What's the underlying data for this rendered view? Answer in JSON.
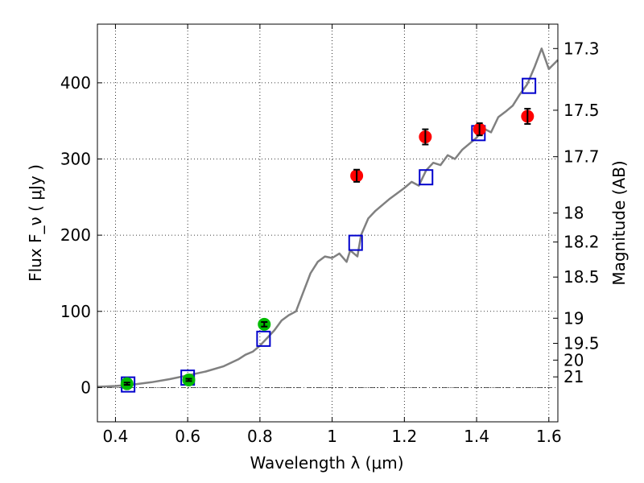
{
  "chart_data": {
    "type": "scatter",
    "xlabel": "Wavelength  λ (μm)",
    "ylabel": "Flux  F_ν  ( μJy )",
    "ylabel_right": "Magnitude (AB)",
    "xlim": [
      0.35,
      1.625
    ],
    "ylim": [
      -45,
      477
    ],
    "grid": true,
    "x_ticks": [
      0.4,
      0.6,
      0.8,
      1.0,
      1.2,
      1.4,
      1.6
    ],
    "x_tick_labels": [
      "0.4",
      "0.6",
      "0.8",
      "1",
      "1.2",
      "1.4",
      "1.6"
    ],
    "y_ticks": [
      0,
      100,
      200,
      300,
      400
    ],
    "y_tick_labels": [
      "0",
      "100",
      "200",
      "300",
      "400"
    ],
    "right_axis_ticks": [
      {
        "label": "17.3",
        "flux": 445
      },
      {
        "label": "17.5",
        "flux": 364
      },
      {
        "label": "17.7",
        "flux": 303
      },
      {
        "label": "18",
        "flux": 229
      },
      {
        "label": "18.2",
        "flux": 191
      },
      {
        "label": "18.5",
        "flux": 145
      },
      {
        "label": "19",
        "flux": 91
      },
      {
        "label": "19.5",
        "flux": 58
      },
      {
        "label": "20",
        "flux": 36
      },
      {
        "label": "21",
        "flux": 14
      }
    ],
    "series": [
      {
        "marker": "line",
        "color": "#808080",
        "x": [
          0.35,
          0.4,
          0.45,
          0.5,
          0.55,
          0.6,
          0.65,
          0.7,
          0.74,
          0.76,
          0.78,
          0.8,
          0.82,
          0.84,
          0.86,
          0.88,
          0.9,
          0.92,
          0.94,
          0.96,
          0.98,
          1.0,
          1.02,
          1.04,
          1.05,
          1.07,
          1.08,
          1.1,
          1.12,
          1.14,
          1.16,
          1.18,
          1.2,
          1.22,
          1.24,
          1.26,
          1.28,
          1.3,
          1.32,
          1.34,
          1.36,
          1.38,
          1.4,
          1.42,
          1.44,
          1.46,
          1.48,
          1.5,
          1.52,
          1.54,
          1.56,
          1.58,
          1.6,
          1.625
        ],
        "y": [
          1,
          2,
          4,
          7,
          11,
          16,
          21,
          28,
          37,
          43,
          47,
          55,
          65,
          75,
          88,
          95,
          100,
          125,
          150,
          165,
          172,
          170,
          176,
          165,
          180,
          172,
          200,
          222,
          232,
          240,
          248,
          255,
          262,
          270,
          265,
          285,
          295,
          292,
          305,
          300,
          312,
          320,
          328,
          340,
          335,
          355,
          362,
          370,
          385,
          398,
          420,
          445,
          418,
          430
        ]
      },
      {
        "name": "",
        "marker": "square",
        "color": "#0000cc",
        "x": [
          0.435,
          0.6,
          0.81,
          1.065,
          1.26,
          1.405,
          1.545
        ],
        "y": [
          4,
          13,
          64,
          190,
          276,
          334,
          396
        ]
      },
      {
        "name": "",
        "marker": "circle",
        "color": "#00bb00",
        "x": [
          0.432,
          0.603,
          0.812
        ],
        "y": [
          5,
          10,
          83
        ],
        "yerr": [
          1.5,
          1.5,
          3
        ]
      },
      {
        "name": "",
        "marker": "circle",
        "color": "#ff0000",
        "x": [
          1.068,
          1.258,
          1.408,
          1.541
        ],
        "y": [
          278,
          329,
          339,
          356
        ],
        "yerr": [
          8,
          10,
          8,
          10
        ]
      }
    ]
  }
}
